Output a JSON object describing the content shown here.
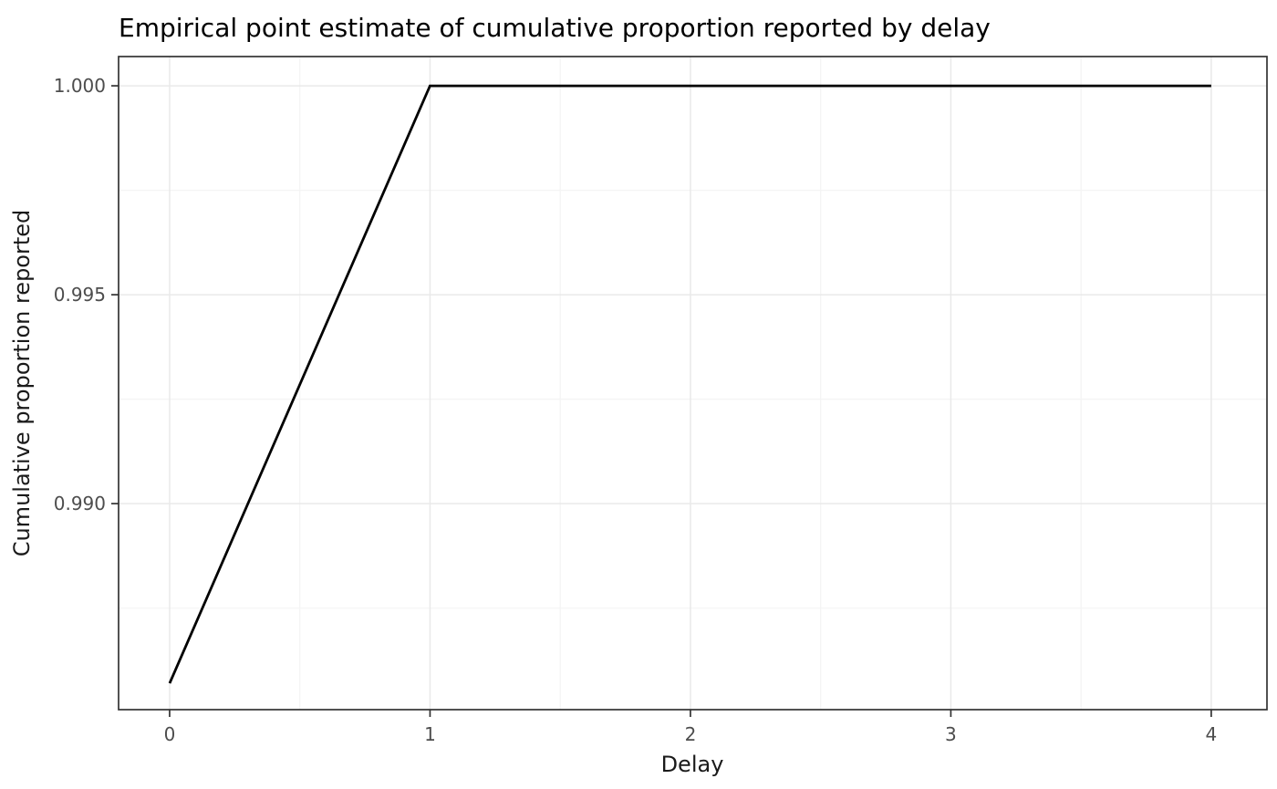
{
  "chart_data": {
    "type": "line",
    "title": "Empirical point estimate of cumulative proportion reported by delay",
    "xlabel": "Delay",
    "ylabel": "Cumulative proportion reported",
    "x": [
      0,
      1,
      2,
      3,
      4
    ],
    "series": [
      {
        "name": "cumulative-proportion-reported",
        "values": [
          0.9857,
          1.0,
          1.0,
          1.0,
          1.0
        ],
        "color": "#000000"
      }
    ],
    "xlim": [
      -0.196,
      4.214
    ],
    "ylim": [
      0.98507,
      1.0007
    ],
    "x_ticks": {
      "values": [
        0,
        1,
        2,
        3,
        4
      ],
      "labels": [
        "0",
        "1",
        "2",
        "3",
        "4"
      ]
    },
    "y_ticks": {
      "values": [
        1.0,
        0.995,
        0.99
      ],
      "labels": [
        "1.000",
        "0.995",
        "0.990"
      ]
    },
    "x_minor": [
      0.5,
      1.5,
      2.5,
      3.5
    ],
    "y_minor": [
      0.9975,
      0.9925,
      0.9875
    ],
    "grid": true,
    "legend": "none",
    "style": {
      "background": "#ffffff",
      "panel_background": "#ffffff",
      "panel_border": "#333333",
      "grid_major": "#e9e9e9",
      "grid_minor": "#f4f4f4",
      "tick_color": "#333333",
      "tick_label_color": "#4d4d4d",
      "line_color": "#000000"
    }
  }
}
